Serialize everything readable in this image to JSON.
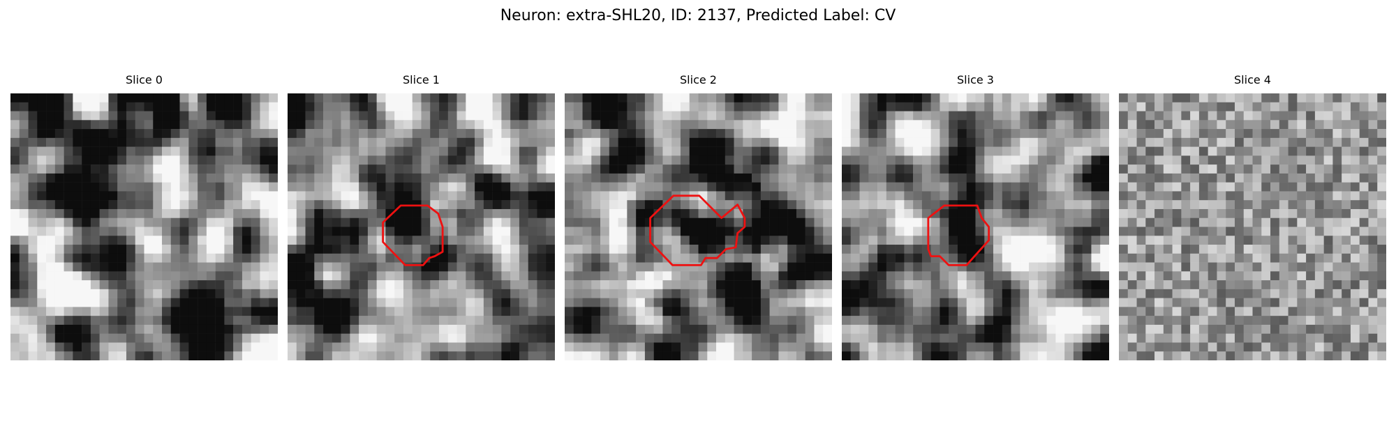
{
  "title": "Neuron: extra-SHL20, ID: 2137, Predicted Label: CV",
  "panels": [
    {
      "title": "Slice 0"
    },
    {
      "title": "Slice 1"
    },
    {
      "title": "Slice 2"
    },
    {
      "title": "Slice 3"
    },
    {
      "title": "Slice 4"
    }
  ]
}
